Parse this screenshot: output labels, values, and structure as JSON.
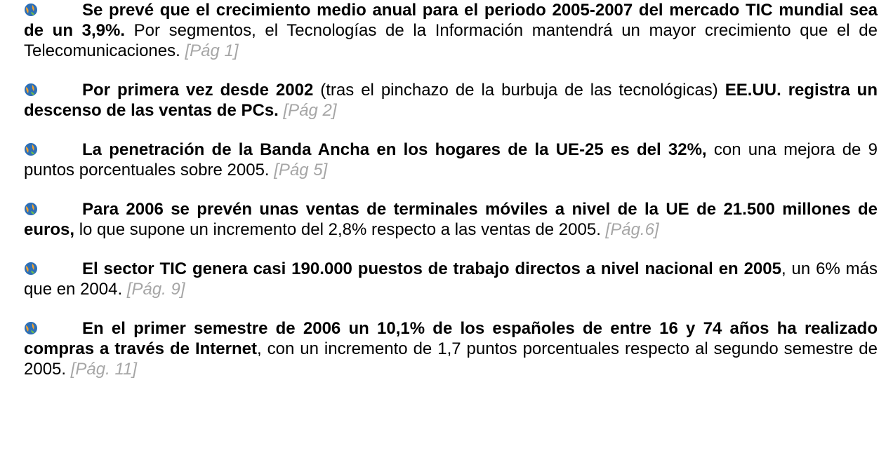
{
  "items": [
    {
      "parts": [
        {
          "bold": "Se prevé que el crecimiento medio anual para el periodo 2005-2007 del mercado TIC mundial sea de un 3,9%."
        },
        {
          "text": " Por segmentos, el Tecnologías de la Información mantendrá un mayor crecimiento que el de Telecomunicaciones."
        }
      ],
      "ref": "[Pág 1]"
    },
    {
      "parts": [
        {
          "bold": "Por primera vez desde 2002"
        },
        {
          "text": " (tras el pinchazo de la burbuja de las tecnológicas) "
        },
        {
          "bold": "EE.UU. registra un descenso de las ventas de PCs."
        }
      ],
      "ref": "[Pág 2]"
    },
    {
      "parts": [
        {
          "bold": "La penetración de la Banda Ancha en los hogares de la UE-25 es del 32%,"
        },
        {
          "text": " con una mejora de 9 puntos porcentuales sobre 2005."
        }
      ],
      "ref": "[Pág 5]"
    },
    {
      "parts": [
        {
          "bold": "Para 2006 se prevén unas ventas de terminales móviles a nivel de la UE de 21.500 millones de euros,"
        },
        {
          "text": " lo que supone un incremento del 2,8% respecto a las ventas de 2005."
        }
      ],
      "ref": "[Pág.6]"
    },
    {
      "parts": [
        {
          "bold": "El sector TIC genera casi 190.000 puestos de trabajo directos a nivel nacional en 2005"
        },
        {
          "text": ", un 6% más que en 2004."
        }
      ],
      "ref": "[Pág. 9]"
    },
    {
      "parts": [
        {
          "bold": "En el primer semestre de 2006 un 10,1% de los españoles de entre 16 y 74 años ha realizado compras a través de Internet"
        },
        {
          "text": ", con un incremento de 1,7 puntos porcentuales respecto al segundo semestre de 2005."
        }
      ],
      "ref": "[Pág. 11]"
    }
  ]
}
